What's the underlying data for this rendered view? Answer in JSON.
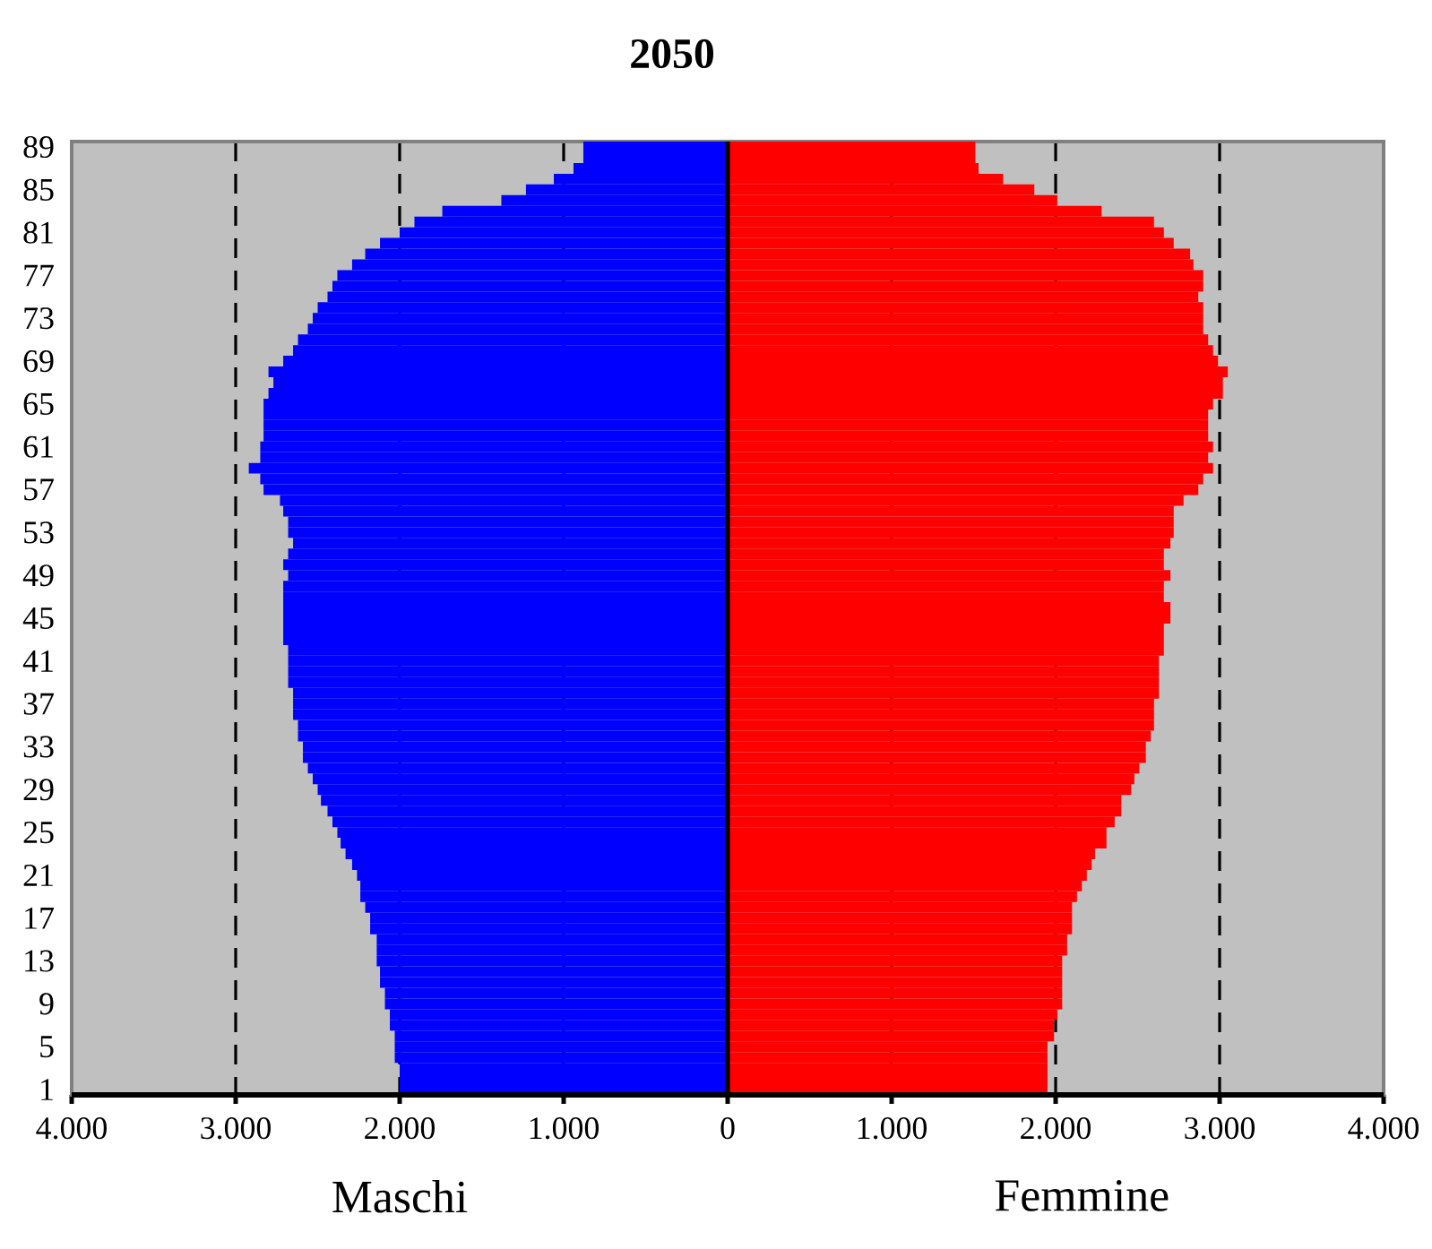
{
  "chart_data": {
    "type": "bar",
    "orientation": "horizontal",
    "stacked": true,
    "title": "2050",
    "categories": [
      "89",
      null,
      null,
      null,
      "85",
      null,
      null,
      null,
      "81",
      null,
      null,
      null,
      "77",
      null,
      null,
      null,
      "73",
      null,
      null,
      null,
      "69",
      null,
      null,
      null,
      "65",
      null,
      null,
      null,
      "61",
      null,
      null,
      null,
      "57",
      null,
      null,
      null,
      "53",
      null,
      null,
      null,
      "49",
      null,
      null,
      null,
      "45",
      null,
      null,
      null,
      "41",
      null,
      null,
      null,
      "37",
      null,
      null,
      null,
      "33",
      null,
      null,
      null,
      "29",
      null,
      null,
      null,
      "25",
      null,
      null,
      null,
      "21",
      null,
      null,
      null,
      "17",
      null,
      null,
      null,
      "13",
      null,
      null,
      null,
      "9",
      null,
      null,
      null,
      "5",
      null,
      null,
      null,
      "1"
    ],
    "series": [
      {
        "name": "Maschi",
        "color": "#0000ff",
        "values": [
          -880,
          -880,
          -940,
          -1060,
          -1230,
          -1380,
          -1740,
          -1910,
          -2000,
          -2120,
          -2210,
          -2290,
          -2380,
          -2410,
          -2440,
          -2500,
          -2530,
          -2560,
          -2620,
          -2650,
          -2710,
          -2800,
          -2770,
          -2800,
          -2830,
          -2830,
          -2830,
          -2830,
          -2850,
          -2850,
          -2920,
          -2850,
          -2830,
          -2730,
          -2710,
          -2680,
          -2680,
          -2650,
          -2680,
          -2710,
          -2680,
          -2710,
          -2710,
          -2710,
          -2710,
          -2710,
          -2710,
          -2680,
          -2680,
          -2680,
          -2680,
          -2650,
          -2650,
          -2650,
          -2620,
          -2620,
          -2590,
          -2590,
          -2560,
          -2530,
          -2500,
          -2480,
          -2440,
          -2410,
          -2380,
          -2360,
          -2330,
          -2290,
          -2260,
          -2240,
          -2240,
          -2210,
          -2180,
          -2180,
          -2140,
          -2140,
          -2140,
          -2120,
          -2120,
          -2090,
          -2090,
          -2060,
          -2060,
          -2030,
          -2030,
          -2030,
          -2000,
          -2000,
          -2000
        ]
      },
      {
        "name": "Femmine",
        "color": "#ff0000",
        "values": [
          1510,
          1510,
          1530,
          1680,
          1870,
          2010,
          2280,
          2600,
          2660,
          2720,
          2820,
          2840,
          2900,
          2900,
          2870,
          2900,
          2900,
          2900,
          2930,
          2960,
          2990,
          3050,
          3020,
          3020,
          2960,
          2930,
          2930,
          2930,
          2960,
          2930,
          2960,
          2900,
          2870,
          2780,
          2720,
          2720,
          2720,
          2700,
          2660,
          2660,
          2700,
          2660,
          2660,
          2700,
          2700,
          2660,
          2660,
          2660,
          2630,
          2630,
          2630,
          2630,
          2600,
          2600,
          2600,
          2580,
          2550,
          2550,
          2510,
          2480,
          2460,
          2400,
          2400,
          2360,
          2310,
          2310,
          2240,
          2220,
          2190,
          2160,
          2130,
          2100,
          2100,
          2100,
          2070,
          2070,
          2040,
          2040,
          2040,
          2040,
          2040,
          2010,
          1990,
          1990,
          1950,
          1950,
          1950,
          1950,
          1950
        ]
      }
    ],
    "xlim": [
      -4000,
      4000
    ],
    "xticks": [
      {
        "value": -4000,
        "label": "4.000"
      },
      {
        "value": -3000,
        "label": "3.000"
      },
      {
        "value": -2000,
        "label": "2.000"
      },
      {
        "value": -1000,
        "label": "1.000"
      },
      0,
      {
        "value": 1000,
        "label": "1.000"
      },
      {
        "value": 2000,
        "label": "2.000"
      },
      {
        "value": 3000,
        "label": "3.000"
      },
      {
        "value": 4000,
        "label": "4.000"
      }
    ],
    "grid": "x"
  }
}
